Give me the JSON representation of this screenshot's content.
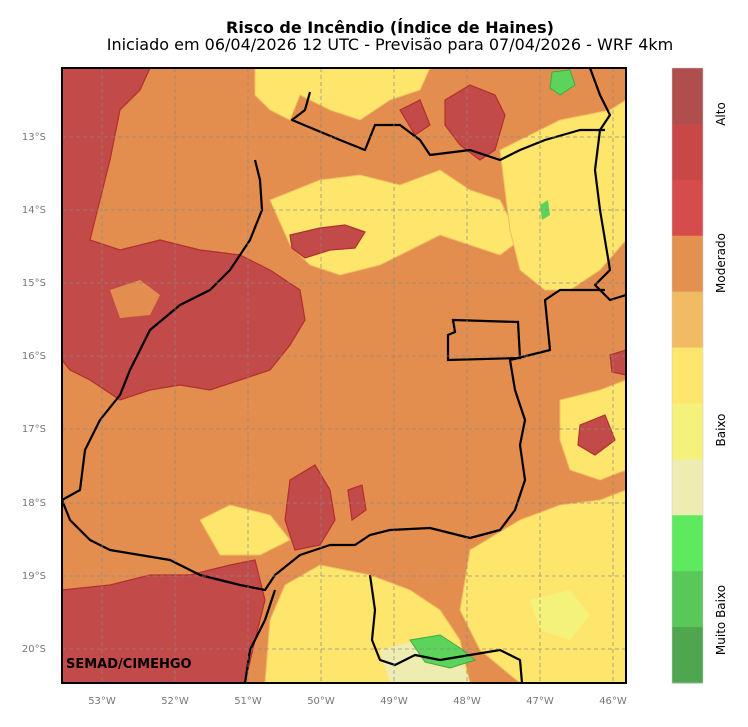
{
  "title": "Risco de Incêndio (Índice de Haines)",
  "subtitle": "Iniciado em 06/04/2026 12 UTC - Previsão para 07/04/2026 - WRF 4km",
  "credit": "SEMAD/CIMEHGO",
  "lat_labels": [
    "13°S",
    "14°S",
    "15°S",
    "16°S",
    "17°S",
    "18°S",
    "19°S",
    "20°S"
  ],
  "lon_labels": [
    "53°W",
    "52°W",
    "51°W",
    "50°W",
    "49°W",
    "48°W",
    "47°W",
    "46°W"
  ],
  "colorbar": {
    "colors": [
      "#4fa64f",
      "#58c958",
      "#5eea5e",
      "#efecb2",
      "#f4f27a",
      "#fde66b",
      "#f0bb63",
      "#e4914f",
      "#d64c4c",
      "#c84848",
      "#b04d4d"
    ],
    "labels": [
      "Muito Baixo",
      "Baixo",
      "Moderado",
      "Alto"
    ]
  },
  "colors": {
    "moderate": "#e38d4e",
    "high": "#c24a48",
    "low": "#fde66b",
    "very_low": "#5cd45c",
    "boundary": "#000000"
  }
}
